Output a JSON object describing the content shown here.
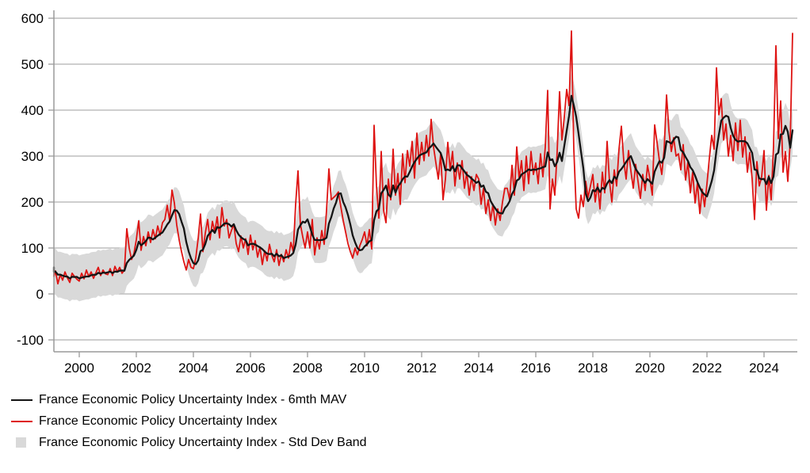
{
  "chart_data": {
    "type": "line",
    "title": "",
    "xlabel": "",
    "ylabel": "",
    "grid": true,
    "legend_position": "bottom-left",
    "ylim": [
      -100,
      600
    ],
    "y_axis": {
      "ticks": [
        600,
        500,
        400,
        300,
        200,
        100,
        0,
        -100
      ]
    },
    "x_axis": {
      "tick_years": [
        2000,
        2002,
        2004,
        2006,
        2008,
        2010,
        2012,
        2014,
        2016,
        2018,
        2020,
        2022,
        2024
      ]
    },
    "frequency": "monthly",
    "start_year": 1999,
    "end_label": "2025-01",
    "colors": {
      "index": "#de1312",
      "mav": "#141414",
      "band": "#d9d9d9",
      "gridline": "#b0b0b0",
      "axis": "#9a9a9a",
      "text": "#000000"
    },
    "series": [
      {
        "name": "France Economic Policy Uncertainty Index - 6mth MAV",
        "type": "line",
        "derived": "6-month moving average of index series"
      },
      {
        "name": "France Economic Policy Uncertainty Index",
        "type": "line",
        "values": [
          58,
          38,
          50,
          22,
          42,
          30,
          48,
          35,
          25,
          45,
          38,
          32,
          28,
          45,
          33,
          52,
          38,
          48,
          34,
          46,
          58,
          40,
          52,
          44,
          42,
          55,
          40,
          60,
          48,
          58,
          45,
          52,
          142,
          100,
          75,
          88,
          118,
          159,
          95,
          125,
          105,
          135,
          112,
          140,
          120,
          148,
          128,
          155,
          162,
          193,
          160,
          226,
          198,
          150,
          118,
          92,
          70,
          52,
          75,
          58,
          55,
          78,
          120,
          174,
          92,
          132,
          162,
          118,
          158,
          135,
          168,
          122,
          188,
          148,
          162,
          122,
          138,
          152,
          110,
          92,
          126,
          100,
          120,
          86,
          128,
          96,
          116,
          80,
          102,
          64,
          94,
          72,
          108,
          84,
          70,
          96,
          62,
          86,
          70,
          96,
          78,
          112,
          92,
          195,
          268,
          152,
          124,
          100,
          135,
          100,
          162,
          85,
          122,
          98,
          138,
          108,
          182,
          272,
          205,
          210,
          215,
          222,
          190,
          160,
          135,
          110,
          92,
          78,
          100,
          85,
          105,
          118,
          135,
          105,
          140,
          98,
          367,
          235,
          165,
          310,
          182,
          155,
          250,
          205,
          315,
          215,
          262,
          195,
          305,
          242,
          312,
          278,
          332,
          252,
          350,
          282,
          330,
          290,
          345,
          300,
          380,
          320,
          285,
          250,
          305,
          205,
          250,
          330,
          270,
          310,
          235,
          285,
          250,
          290,
          230,
          265,
          215,
          255,
          225,
          260,
          250,
          195,
          230,
          175,
          205,
          160,
          195,
          150,
          185,
          160,
          200,
          230,
          230,
          205,
          280,
          215,
          320,
          250,
          290,
          225,
          300,
          240,
          310,
          260,
          285,
          240,
          305,
          255,
          320,
          443,
          185,
          250,
          215,
          310,
          440,
          335,
          385,
          445,
          410,
          572,
          315,
          185,
          165,
          215,
          190,
          245,
          210,
          235,
          260,
          200,
          240,
          185,
          265,
          220,
          332,
          245,
          200,
          270,
          235,
          315,
          365,
          290,
          250,
          312,
          268,
          230,
          282,
          245,
          208,
          260,
          225,
          280,
          250,
          215,
          368,
          330,
          290,
          260,
          315,
          433,
          355,
          310,
          340,
          300,
          305,
          270,
          325,
          248,
          288,
          220,
          265,
          198,
          242,
          175,
          228,
          190,
          240,
          295,
          345,
          315,
          492,
          390,
          425,
          335,
          370,
          300,
          345,
          290,
          372,
          312,
          378,
          298,
          342,
          265,
          308,
          250,
          162,
          288,
          235,
          255,
          312,
          182,
          258,
          205,
          322,
          540,
          338,
          420,
          265,
          310,
          245,
          330,
          567
        ]
      },
      {
        "name": "France Economic Policy Uncertainty Index - Std Dev Band",
        "type": "band",
        "derived": "moving average ± standard deviation of residuals"
      }
    ]
  },
  "legend": {
    "items": [
      {
        "label": "France Economic Policy Uncertainty Index - 6mth MAV",
        "swatch": "black-line"
      },
      {
        "label": "France Economic Policy Uncertainty Index",
        "swatch": "red-line"
      },
      {
        "label": "France Economic Policy Uncertainty Index - Std Dev Band",
        "swatch": "gray-square"
      }
    ]
  }
}
